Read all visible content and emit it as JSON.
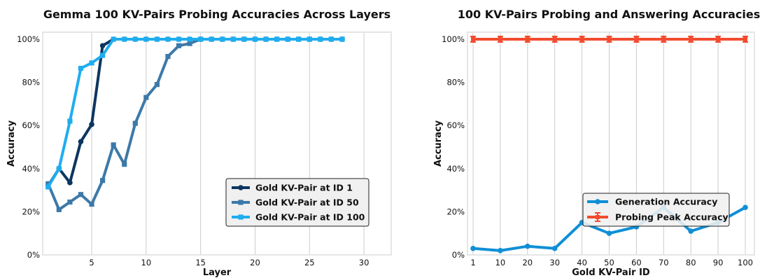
{
  "chart_data": [
    {
      "type": "line",
      "title": "Gemma 100 KV-Pairs Probing Accuracies Across Layers",
      "xlabel": "Layer",
      "ylabel": "Accuracy",
      "xlim": [
        0.5,
        32.5
      ],
      "ylim": [
        0,
        100
      ],
      "xticks": [
        5,
        10,
        15,
        20,
        25,
        30
      ],
      "yticks": [
        0,
        20,
        40,
        60,
        80,
        100
      ],
      "ytick_labels": [
        "0%",
        "20%",
        "40%",
        "60%",
        "80%",
        "100%"
      ],
      "grid": "vertical",
      "legend_position": "lower-right",
      "series": [
        {
          "name": "Gold KV-Pair at ID 1",
          "color": "#0d3560",
          "marker": "circle",
          "x": [
            1,
            2,
            3,
            4,
            5,
            6,
            7,
            8,
            9,
            10,
            11,
            12,
            13,
            14,
            15,
            16,
            17,
            18,
            19,
            20,
            21,
            22,
            23,
            24,
            25,
            26,
            27,
            28
          ],
          "y": [
            32,
            40,
            33.5,
            52.5,
            60.5,
            97,
            100,
            100,
            100,
            100,
            100,
            100,
            100,
            100,
            100,
            100,
            100,
            100,
            100,
            100,
            100,
            100,
            100,
            100,
            100,
            100,
            100,
            100
          ]
        },
        {
          "name": "Gold KV-Pair at ID 50",
          "color": "#3d79a8",
          "marker": "square",
          "x": [
            1,
            2,
            3,
            4,
            5,
            6,
            7,
            8,
            9,
            10,
            11,
            12,
            13,
            14,
            15,
            16,
            17,
            18,
            19,
            20,
            21,
            22,
            23,
            24,
            25,
            26,
            27,
            28
          ],
          "y": [
            33,
            21,
            24.5,
            28,
            23.5,
            34.5,
            51,
            42,
            61,
            73,
            79,
            92,
            97,
            98,
            100,
            100,
            100,
            100,
            100,
            100,
            100,
            100,
            100,
            100,
            100,
            100,
            100,
            100
          ]
        },
        {
          "name": "Gold KV-Pair at ID 100",
          "color": "#1fadef",
          "marker": "square",
          "x": [
            1,
            2,
            3,
            4,
            5,
            6,
            7,
            8,
            9,
            10,
            11,
            12,
            13,
            14,
            15,
            16,
            17,
            18,
            19,
            20,
            21,
            22,
            23,
            24,
            25,
            26,
            27,
            28
          ],
          "y": [
            31.5,
            40,
            62,
            86.5,
            89,
            92.5,
            100,
            100,
            100,
            100,
            100,
            100,
            100,
            100,
            100,
            100,
            100,
            100,
            100,
            100,
            100,
            100,
            100,
            100,
            100,
            100,
            100,
            100
          ]
        }
      ]
    },
    {
      "type": "line",
      "title": "100 KV-Pairs Probing and Answering Accuracies",
      "xlabel": "Gold KV-Pair ID",
      "ylabel": "Accuracy",
      "categories": [
        "1",
        "10",
        "20",
        "30",
        "40",
        "50",
        "60",
        "70",
        "80",
        "90",
        "100"
      ],
      "ylim": [
        0,
        100
      ],
      "yticks": [
        0,
        20,
        40,
        60,
        80,
        100
      ],
      "ytick_labels": [
        "0%",
        "20%",
        "40%",
        "60%",
        "80%",
        "100%"
      ],
      "grid": "vertical",
      "legend_position": "lower-right",
      "series": [
        {
          "name": "Generation Accuracy",
          "color": "#0f8fd6",
          "marker": "circle",
          "values": [
            3,
            2,
            4,
            3,
            15,
            10,
            13,
            22,
            11,
            15,
            22
          ]
        },
        {
          "name": "Probing Peak Accuracy",
          "color": "#f24b2f",
          "marker": "errorbar",
          "values": [
            100,
            100,
            100,
            100,
            100,
            100,
            100,
            100,
            100,
            100,
            100
          ]
        }
      ]
    }
  ]
}
